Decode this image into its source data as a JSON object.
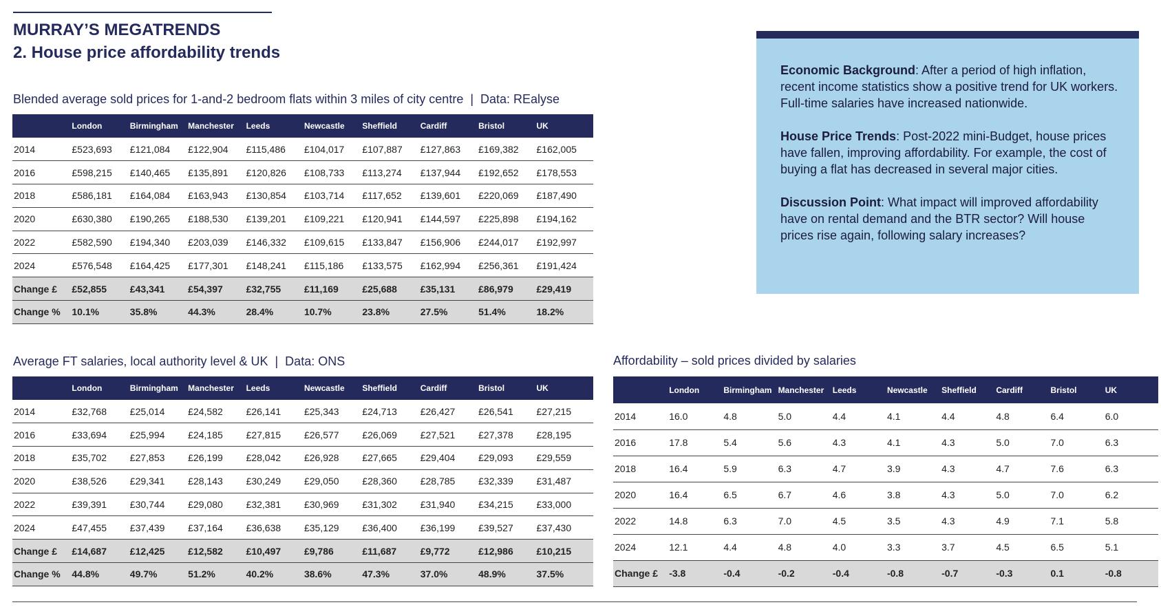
{
  "header": {
    "brand": "MURRAY’S MEGATRENDS",
    "title": "2. House price affordability trends"
  },
  "info_box": {
    "paragraphs": [
      {
        "lead": "Economic Background",
        "text": ": After a period of high inflation, recent income statistics show a positive trend for UK workers. Full-time salaries have increased nationwide."
      },
      {
        "lead": "House Price Trends",
        "text": ": Post-2022 mini-Budget, house prices have fallen, improving affordability. For example, the cost of buying a flat has decreased in several major cities."
      },
      {
        "lead": "Discussion Point",
        "text": ": What impact will improved affordability have on rental demand and the BTR sector? Will house prices rise again, following salary increases?"
      }
    ]
  },
  "tables": [
    {
      "caption": "Blended average sold prices for 1-and-2 bedroom flats within 3 miles of city centre  |  Data: REalyse",
      "columns": [
        "London",
        "Birmingham",
        "Manchester",
        "Leeds",
        "Newcastle",
        "Sheffield",
        "Cardiff",
        "Bristol",
        "UK"
      ],
      "rows": [
        [
          "2014",
          "£523,693",
          "£121,084",
          "£122,904",
          "£115,486",
          "£104,017",
          "£107,887",
          "£127,863",
          "£169,382",
          "£162,005"
        ],
        [
          "2016",
          "£598,215",
          "£140,465",
          "£135,891",
          "£120,826",
          "£108,733",
          "£113,274",
          "£137,944",
          "£192,652",
          "£178,553"
        ],
        [
          "2018",
          "£586,181",
          "£164,084",
          "£163,943",
          "£130,854",
          "£103,714",
          "£117,652",
          "£139,601",
          "£220,069",
          "£187,490"
        ],
        [
          "2020",
          "£630,380",
          "£190,265",
          "£188,530",
          "£139,201",
          "£109,221",
          "£120,941",
          "£144,597",
          "£225,898",
          "£194,162"
        ],
        [
          "2022",
          "£582,590",
          "£194,340",
          "£203,039",
          "£146,332",
          "£109,615",
          "£133,847",
          "£156,906",
          "£244,017",
          "£192,997"
        ],
        [
          "2024",
          "£576,548",
          "£164,425",
          "£177,301",
          "£148,241",
          "£115,186",
          "£133,575",
          "£162,994",
          "£256,361",
          "£191,424"
        ]
      ],
      "summary_rows": [
        [
          "Change £",
          "£52,855",
          "£43,341",
          "£54,397",
          "£32,755",
          "£11,169",
          "£25,688",
          "£35,131",
          "£86,979",
          "£29,419"
        ],
        [
          "Change %",
          "10.1%",
          "35.8%",
          "44.3%",
          "28.4%",
          "10.7%",
          "23.8%",
          "27.5%",
          "51.4%",
          "18.2%"
        ]
      ]
    },
    {
      "caption": "Average FT salaries, local authority level & UK  |  Data: ONS",
      "columns": [
        "London",
        "Birmingham",
        "Manchester",
        "Leeds",
        "Newcastle",
        "Sheffield",
        "Cardiff",
        "Bristol",
        "UK"
      ],
      "rows": [
        [
          "2014",
          "£32,768",
          "£25,014",
          "£24,582",
          "£26,141",
          "£25,343",
          "£24,713",
          "£26,427",
          "£26,541",
          "£27,215"
        ],
        [
          "2016",
          "£33,694",
          "£25,994",
          "£24,185",
          "£27,815",
          "£26,577",
          "£26,069",
          "£27,521",
          "£27,378",
          "£28,195"
        ],
        [
          "2018",
          "£35,702",
          "£27,853",
          "£26,199",
          "£28,042",
          "£26,928",
          "£27,665",
          "£29,404",
          "£29,093",
          "£29,559"
        ],
        [
          "2020",
          "£38,526",
          "£29,341",
          "£28,143",
          "£30,249",
          "£29,050",
          "£28,360",
          "£28,785",
          "£32,339",
          "£31,487"
        ],
        [
          "2022",
          "£39,391",
          "£30,744",
          "£29,080",
          "£32,381",
          "£30,969",
          "£31,302",
          "£31,940",
          "£34,215",
          "£33,000"
        ],
        [
          "2024",
          "£47,455",
          "£37,439",
          "£37,164",
          "£36,638",
          "£35,129",
          "£36,400",
          "£36,199",
          "£39,527",
          "£37,430"
        ]
      ],
      "summary_rows": [
        [
          "Change £",
          "£14,687",
          "£12,425",
          "£12,582",
          "£10,497",
          "£9,786",
          "£11,687",
          "£9,772",
          "£12,986",
          "£10,215"
        ],
        [
          "Change %",
          "44.8%",
          "49.7%",
          "51.2%",
          "40.2%",
          "38.6%",
          "47.3%",
          "37.0%",
          "48.9%",
          "37.5%"
        ]
      ]
    },
    {
      "caption": "Affordability – sold prices divided by salaries",
      "columns": [
        "London",
        "Birmingham",
        "Manchester",
        "Leeds",
        "Newcastle",
        "Sheffield",
        "Cardiff",
        "Bristol",
        "UK"
      ],
      "rows": [
        [
          "2014",
          "16.0",
          "4.8",
          "5.0",
          "4.4",
          "4.1",
          "4.4",
          "4.8",
          "6.4",
          "6.0"
        ],
        [
          "2016",
          "17.8",
          "5.4",
          "5.6",
          "4.3",
          "4.1",
          "4.3",
          "5.0",
          "7.0",
          "6.3"
        ],
        [
          "2018",
          "16.4",
          "5.9",
          "6.3",
          "4.7",
          "3.9",
          "4.3",
          "4.7",
          "7.6",
          "6.3"
        ],
        [
          "2020",
          "16.4",
          "6.5",
          "6.7",
          "4.6",
          "3.8",
          "4.3",
          "5.0",
          "7.0",
          "6.2"
        ],
        [
          "2022",
          "14.8",
          "6.3",
          "7.0",
          "4.5",
          "3.5",
          "4.3",
          "4.9",
          "7.1",
          "5.8"
        ],
        [
          "2024",
          "12.1",
          "4.4",
          "4.8",
          "4.0",
          "3.3",
          "3.7",
          "4.5",
          "6.5",
          "5.1"
        ]
      ],
      "summary_rows": [
        [
          "Change £",
          "-3.8",
          "-0.4",
          "-0.2",
          "-0.4",
          "-0.8",
          "-0.7",
          "-0.3",
          "0.1",
          "-0.8"
        ]
      ]
    }
  ]
}
